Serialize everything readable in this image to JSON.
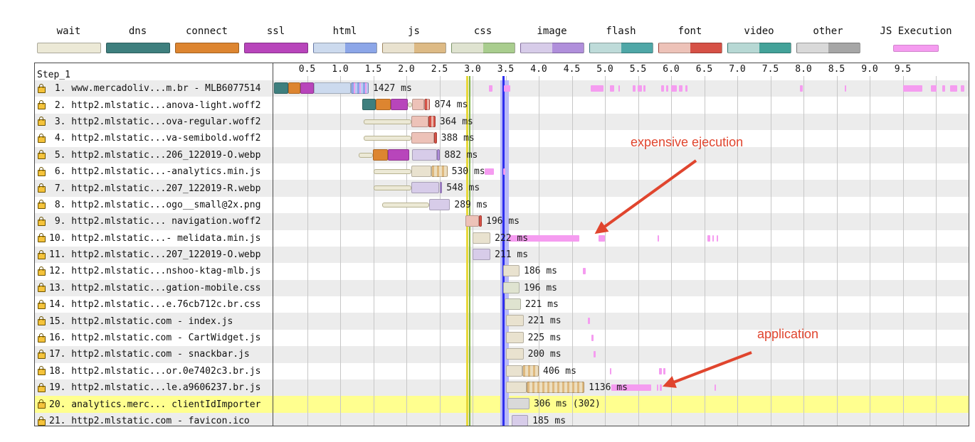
{
  "colors": {
    "annotation": "#e0452e",
    "row_alt": "#ececec",
    "row_highlight": "#ffff8f",
    "js_exec": "#f59cf0",
    "marker_yellow": "#e8d83a",
    "marker_green": "#7cb342",
    "marker_blue": "#2e2ef0",
    "marker_blue_halo": "#b9b9f7",
    "gridline": "#c7c7c7"
  },
  "chart_data": {
    "type": "bar",
    "subtype": "request-waterfall",
    "title": "Step_1",
    "x_unit": "seconds",
    "x_range": [
      0,
      10.5
    ],
    "x_ticks": [
      "0.5",
      "1.0",
      "1.5",
      "2.0",
      "2.5",
      "3.0",
      "3.5",
      "4.0",
      "4.5",
      "5.0",
      "5.5",
      "6.0",
      "6.5",
      "7.0",
      "7.5",
      "8.0",
      "8.5",
      "9.0",
      "9.5"
    ],
    "grid": true,
    "legend_position": "top",
    "legend": [
      {
        "label": "wait",
        "colors": [
          "#ece9d6"
        ]
      },
      {
        "label": "dns",
        "colors": [
          "#3e7f7e"
        ]
      },
      {
        "label": "connect",
        "colors": [
          "#dd8530"
        ]
      },
      {
        "label": "ssl",
        "colors": [
          "#b845bb"
        ]
      },
      {
        "label": "html",
        "colors": [
          "#ccdaee",
          "#8ca6e8"
        ]
      },
      {
        "label": "js",
        "colors": [
          "#e9e2cf",
          "#ddba85"
        ]
      },
      {
        "label": "css",
        "colors": [
          "#dfe3d0",
          "#a9cd8e"
        ]
      },
      {
        "label": "image",
        "colors": [
          "#d7cce9",
          "#b08fdb"
        ]
      },
      {
        "label": "flash",
        "colors": [
          "#bedbd9",
          "#4fa7a7"
        ]
      },
      {
        "label": "font",
        "colors": [
          "#edc2b8",
          "#d65146"
        ]
      },
      {
        "label": "video",
        "colors": [
          "#b7d8d4",
          "#43a299"
        ]
      },
      {
        "label": "other",
        "colors": [
          "#d9d9d9",
          "#a6a6a6"
        ]
      },
      {
        "label": "JS Execution",
        "colors": [
          "#f59cf0"
        ],
        "thin": true
      }
    ],
    "markers": [
      {
        "name": "yellow-event-line",
        "t": 2.9,
        "color": "#e8d83a"
      },
      {
        "name": "green-event-line",
        "t": 2.95,
        "color": "#7cb342"
      },
      {
        "name": "blue-event-line",
        "t": 3.45,
        "color": "#2e2ef0",
        "halo": [
          3.42,
          3.55
        ]
      }
    ],
    "annotations": [
      {
        "text": "expensive ejecution",
        "color": "#e0452e",
        "arrow_from": [
          978,
          226
        ],
        "arrow_to": [
          840,
          326
        ],
        "target_row": 10
      },
      {
        "text": "application",
        "color": "#e0452e",
        "arrow_from": [
          1056,
          496
        ],
        "arrow_to": [
          936,
          542
        ],
        "target_row": 19
      }
    ],
    "rows": [
      {
        "label": " 1. www.mercadoliv...m.br - MLB6077514",
        "time": "1427 ms",
        "highlight": false,
        "segments": [
          [
            "dns",
            0,
            0.22
          ],
          [
            "connect",
            0.22,
            0.4
          ],
          [
            "ssl",
            0.4,
            0.6
          ],
          [
            "html",
            0.6,
            1.16
          ],
          [
            "htmlx",
            1.16,
            1.43
          ]
        ],
        "exec": [
          [
            3.25,
            0.05
          ],
          [
            3.47,
            0.1
          ],
          [
            4.78,
            0.2
          ],
          [
            5.08,
            0.06
          ],
          [
            5.2,
            0.03
          ],
          [
            5.42,
            0.04
          ],
          [
            5.49,
            0.07
          ],
          [
            5.58,
            0.03
          ],
          [
            5.85,
            0.04
          ],
          [
            5.93,
            0.03
          ],
          [
            6.0,
            0.09
          ],
          [
            6.12,
            0.05
          ],
          [
            6.22,
            0.03
          ],
          [
            7.95,
            0.04
          ],
          [
            8.62,
            0.03
          ],
          [
            9.5,
            0.3
          ],
          [
            9.93,
            0.08
          ],
          [
            10.1,
            0.04
          ],
          [
            10.22,
            0.1
          ],
          [
            10.38,
            0.05
          ]
        ]
      },
      {
        "label": " 2. http2.mlstatic...anova-light.woff2",
        "time": "874 ms",
        "highlight": false,
        "segments": [
          [
            "dns",
            1.33,
            1.54
          ],
          [
            "connect",
            1.54,
            1.76
          ],
          [
            "ssl",
            1.76,
            2.02
          ],
          [
            "wait",
            2.02,
            2.09
          ],
          [
            "font",
            2.09,
            2.27
          ],
          [
            "fontx",
            2.27,
            2.36
          ]
        ],
        "exec": []
      },
      {
        "label": " 3. http2.mlstatic...ova-regular.woff2",
        "time": "364 ms",
        "highlight": false,
        "segments": [
          [
            "wait",
            1.35,
            2.08
          ],
          [
            "font",
            2.08,
            2.33
          ],
          [
            "fontx",
            2.33,
            2.44
          ]
        ],
        "exec": []
      },
      {
        "label": " 4. http2.mlstatic...va-semibold.woff2",
        "time": "388 ms",
        "highlight": false,
        "segments": [
          [
            "wait",
            1.35,
            2.08
          ],
          [
            "font",
            2.08,
            2.42
          ],
          [
            "fontx",
            2.42,
            2.46
          ]
        ],
        "exec": []
      },
      {
        "label": " 5. http2.mlstatic...206_122019-O.webp",
        "time": "882 ms",
        "highlight": false,
        "segments": [
          [
            "wait",
            1.28,
            1.49
          ],
          [
            "connect",
            1.49,
            1.72
          ],
          [
            "ssl",
            1.72,
            2.04
          ],
          [
            "image",
            2.09,
            2.46
          ],
          [
            "imagex",
            2.46,
            2.51
          ]
        ],
        "exec": []
      },
      {
        "label": " 6. http2.mlstatic...-analytics.min.js",
        "time": "530 ms",
        "highlight": false,
        "segments": [
          [
            "wait",
            1.51,
            2.08
          ],
          [
            "js",
            2.08,
            2.38
          ],
          [
            "jsx",
            2.38,
            2.62
          ]
        ],
        "exec": [
          [
            3.18,
            0.14
          ],
          [
            3.46,
            0.04
          ]
        ]
      },
      {
        "label": " 7. http2.mlstatic...207_122019-R.webp",
        "time": "548 ms",
        "highlight": false,
        "segments": [
          [
            "wait",
            1.51,
            2.08
          ],
          [
            "image",
            2.08,
            2.5
          ],
          [
            "imagex",
            2.5,
            2.54
          ]
        ],
        "exec": []
      },
      {
        "label": " 8. http2.mlstatic...ogo__small@2x.png",
        "time": "289 ms",
        "highlight": false,
        "segments": [
          [
            "wait",
            1.63,
            2.34
          ],
          [
            "image",
            2.34,
            2.66
          ]
        ],
        "exec": []
      },
      {
        "label": " 9. http2.mlstatic... navigation.woff2",
        "time": "196 ms",
        "highlight": false,
        "segments": [
          [
            "font",
            2.89,
            3.1
          ],
          [
            "fontx",
            3.1,
            3.14
          ]
        ],
        "exec": []
      },
      {
        "label": "10. http2.mlstatic...- melidata.min.js",
        "time": "222 ms",
        "highlight": false,
        "segments": [
          [
            "js",
            3.0,
            3.27
          ]
        ],
        "exec": [
          [
            3.54,
            1.07
          ],
          [
            4.9,
            0.1
          ],
          [
            5.8,
            0.02
          ],
          [
            6.55,
            0.04
          ],
          [
            6.62,
            0.02
          ],
          [
            6.69,
            0.02
          ]
        ]
      },
      {
        "label": "11. http2.mlstatic...207_122019-O.webp",
        "time": "211 ms",
        "highlight": false,
        "segments": [
          [
            "image",
            3.0,
            3.27
          ]
        ],
        "exec": []
      },
      {
        "label": "12. http2.mlstatic...nshoo-ktag-mlb.js",
        "time": "186 ms",
        "highlight": false,
        "segments": [
          [
            "js",
            3.46,
            3.71
          ]
        ],
        "exec": [
          [
            4.67,
            0.04
          ]
        ]
      },
      {
        "label": "13. http2.mlstatic...gation-mobile.css",
        "time": "196 ms",
        "highlight": false,
        "segments": [
          [
            "css",
            3.46,
            3.71
          ]
        ],
        "exec": []
      },
      {
        "label": "14. http2.mlstatic...e.76cb712c.br.css",
        "time": "221 ms",
        "highlight": false,
        "segments": [
          [
            "css",
            3.48,
            3.73
          ]
        ],
        "exec": []
      },
      {
        "label": "15. http2.mlstatic.com - index.js",
        "time": "221 ms",
        "highlight": false,
        "segments": [
          [
            "js",
            3.5,
            3.77
          ]
        ],
        "exec": [
          [
            4.74,
            0.03
          ]
        ]
      },
      {
        "label": "16. http2.mlstatic.com - CartWidget.js",
        "time": "225 ms",
        "highlight": false,
        "segments": [
          [
            "js",
            3.5,
            3.77
          ]
        ],
        "exec": [
          [
            4.8,
            0.03
          ]
        ]
      },
      {
        "label": "17. http2.mlstatic.com - snackbar.js",
        "time": "200 ms",
        "highlight": false,
        "segments": [
          [
            "js",
            3.5,
            3.77
          ]
        ],
        "exec": [
          [
            4.83,
            0.03
          ]
        ]
      },
      {
        "label": "18. http2.mlstatic...or.0e7402c3.br.js",
        "time": "406 ms",
        "highlight": false,
        "segments": [
          [
            "js",
            3.5,
            3.75
          ],
          [
            "jsx",
            3.75,
            4.0
          ]
        ],
        "exec": [
          [
            5.07,
            0.03
          ],
          [
            5.82,
            0.04
          ],
          [
            5.88,
            0.03
          ]
        ]
      },
      {
        "label": "19. http2.mlstatic...le.a9606237.br.js",
        "time": "1136 ms",
        "highlight": false,
        "segments": [
          [
            "js",
            3.5,
            3.82
          ],
          [
            "jsx",
            3.82,
            4.69
          ]
        ],
        "exec": [
          [
            5.1,
            0.6
          ],
          [
            5.78,
            0.03
          ],
          [
            5.83,
            0.03
          ],
          [
            6.66,
            0.02
          ]
        ]
      },
      {
        "label": "20. analytics.merc... clientIdImporter",
        "time": "306 ms (302)",
        "highlight": true,
        "segments": [
          [
            "other",
            3.53,
            3.86
          ]
        ],
        "exec": []
      },
      {
        "label": "21. http2.mlstatic.com - favicon.ico",
        "time": "185 ms",
        "highlight": false,
        "segments": [
          [
            "image",
            3.59,
            3.84
          ]
        ],
        "exec": []
      }
    ]
  }
}
